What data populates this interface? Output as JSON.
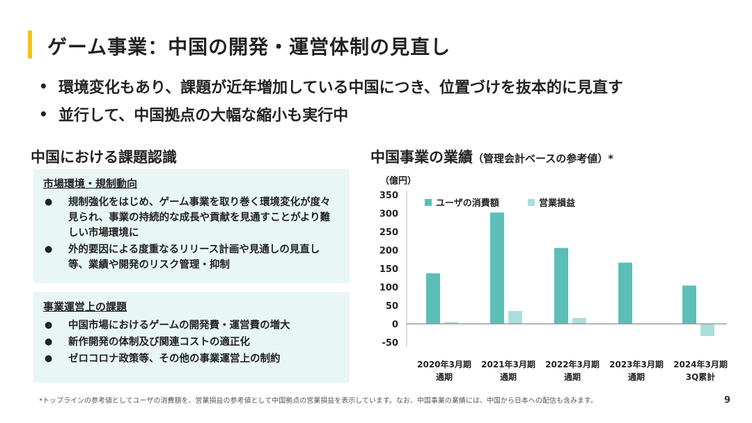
{
  "title": "ゲーム事業：中国の開発・運営体制の見直し",
  "bullets": [
    "環境変化もあり、課題が近年増加している中国につき、位置づけを抜本的に見直す",
    "並行して、中国拠点の大幅な縮小も実行中"
  ],
  "left_section": {
    "title": "中国における課題認識",
    "box1": {
      "heading": "市場環境・規制動向",
      "items": [
        "規制強化をはじめ、ゲーム事業を取り巻く環境変化が度々見られ、事業の持続的な成長や貢献を見通すことがより難しい市場環境に",
        "外的要因による度重なるリリース計画や見通しの見直し等、業績や開発のリスク管理・抑制"
      ]
    },
    "box2": {
      "heading": "事業運営上の課題",
      "items": [
        "中国市場におけるゲームの開発費・運営費の増大",
        "新作開発の体制及び関連コストの適正化",
        "ゼロコロナ政策等、その他の事業運営上の制約"
      ]
    }
  },
  "right_section": {
    "title": "中国事業の業績",
    "subtitle": "（管理会計ベースの参考値）*"
  },
  "chart_data": {
    "type": "bar",
    "unit_label": "（億円）",
    "categories": [
      [
        "2020年3月期",
        "通期"
      ],
      [
        "2021年3月期",
        "通期"
      ],
      [
        "2022年3月期",
        "通期"
      ],
      [
        "2023年3月期",
        "通期"
      ],
      [
        "2024年3月期",
        "3Q累計"
      ]
    ],
    "series": [
      {
        "name": "ユーザの消費額",
        "color": "#5bbfb8",
        "values": [
          137,
          302,
          206,
          166,
          104
        ]
      },
      {
        "name": "営業損益",
        "color": "#a9dedb",
        "values": [
          5,
          35,
          16,
          null,
          -33
        ]
      }
    ],
    "ylim": [
      -50,
      350
    ],
    "yticks": [
      350,
      300,
      250,
      200,
      150,
      100,
      50,
      0,
      -50
    ],
    "grid": false,
    "legend_position": "top"
  },
  "footnote": "*トップラインの参考値としてユーザの消費額を、営業損益の参考値として中国拠点の営業損益を表示しています。なお、中国事業の業績には、中国から日本への配信も含みます。",
  "page_number": "9"
}
